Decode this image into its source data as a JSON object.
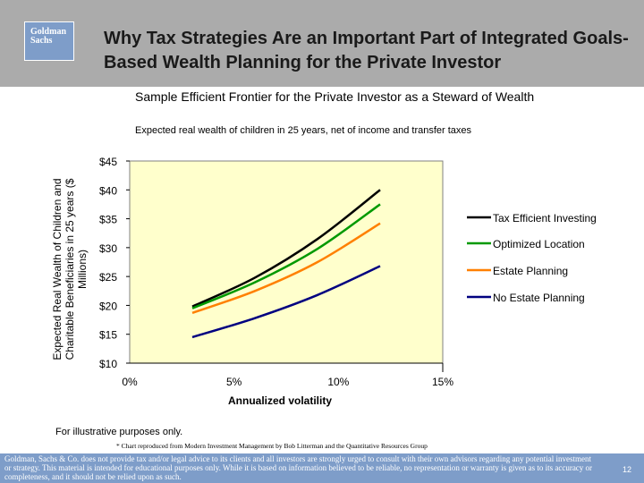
{
  "header": {
    "logo_line1": "Goldman",
    "logo_line2": "Sachs",
    "title": "Why Tax Strategies Are an Important Part of Integrated Goals-Based Wealth Planning for the Private Investor"
  },
  "footnote": "For illustrative purposes only.",
  "credit": "* Chart reproduced from Modern Investment Management by Bob Litterman and the Quantitative Resources Group",
  "footer": {
    "disclaimer": "Goldman, Sachs & Co. does not provide tax and/or legal advice to its clients and all investors are strongly urged to consult with their own advisors regarding any potential investment or strategy. This material is intended for educational purposes only. While it is based on information believed to be reliable, no representation or warranty is given as to its accuracy or completeness, and it should not be relied upon as such.",
    "page_number": "12"
  },
  "colors": {
    "plot_background": "#ffffcc",
    "header_background": "#ababab",
    "footer_background": "#7e9dc9"
  },
  "chart_data": {
    "type": "line",
    "title": "Sample Efficient Frontier for the Private Investor as a Steward of Wealth",
    "subtitle": "Expected real wealth of children in 25 years, net of income and transfer taxes",
    "xlabel": "Annualized volatility",
    "ylabel": "Expected Real Wealth of Children and Charitable Beneficiaries in 25 years ($ Millions)",
    "xlim": [
      0,
      15
    ],
    "ylim": [
      10,
      45
    ],
    "x_ticks": [
      0,
      5,
      10,
      15
    ],
    "x_tick_labels": [
      "0%",
      "5%",
      "10%",
      "15%"
    ],
    "y_ticks": [
      10,
      15,
      20,
      25,
      30,
      35,
      40,
      45
    ],
    "y_tick_labels": [
      "$10",
      "$15",
      "$20",
      "$25",
      "$30",
      "$35",
      "$40",
      "$45"
    ],
    "legend_position": "right",
    "series": [
      {
        "name": "Tax Efficient Investing",
        "color": "#000000",
        "x": [
          3,
          6,
          9,
          12
        ],
        "y": [
          19.8,
          24.8,
          31.5,
          40.0
        ]
      },
      {
        "name": "Optimized Location",
        "color": "#009900",
        "x": [
          3,
          6,
          9,
          12
        ],
        "y": [
          19.5,
          24.0,
          29.8,
          37.5
        ]
      },
      {
        "name": "Estate Planning",
        "color": "#ff8000",
        "x": [
          3,
          6,
          9,
          12
        ],
        "y": [
          18.7,
          22.5,
          27.5,
          34.2
        ]
      },
      {
        "name": "No Estate Planning",
        "color": "#000080",
        "x": [
          3,
          6,
          9,
          12
        ],
        "y": [
          14.5,
          17.8,
          21.8,
          26.8
        ]
      }
    ]
  }
}
